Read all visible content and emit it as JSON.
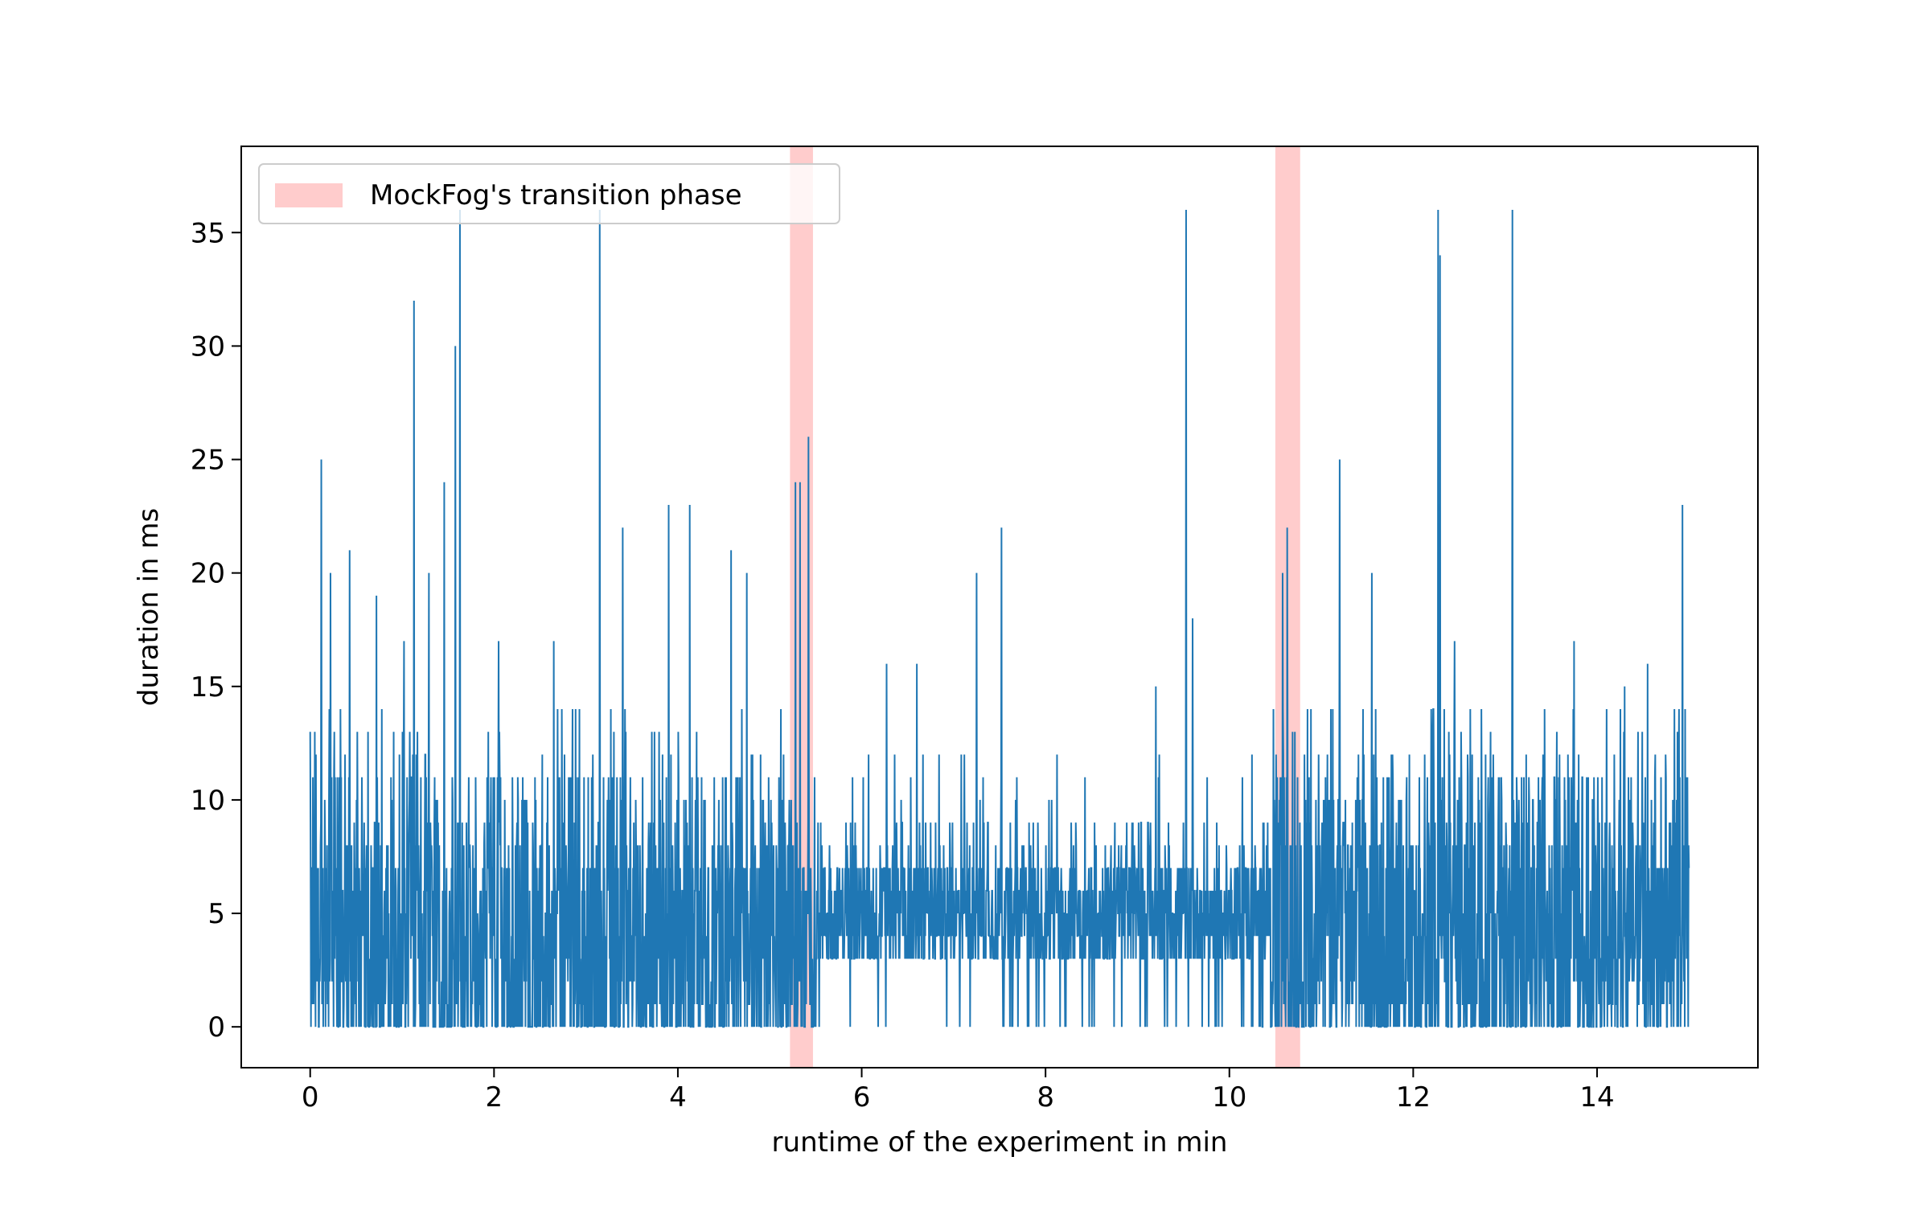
{
  "chart_data": {
    "type": "line",
    "title": "",
    "xlabel": "runtime of the experiment in min",
    "ylabel": "duration in ms",
    "xlim": [
      -0.75,
      15.75
    ],
    "ylim": [
      -1.8,
      38.8
    ],
    "x_ticks": [
      0,
      2,
      4,
      6,
      8,
      10,
      12,
      14
    ],
    "y_ticks": [
      0,
      5,
      10,
      15,
      20,
      25,
      30,
      35
    ],
    "x_tick_labels": [
      "0",
      "2",
      "4",
      "6",
      "8",
      "10",
      "12",
      "14"
    ],
    "y_tick_labels": [
      "0",
      "5",
      "10",
      "15",
      "20",
      "25",
      "30",
      "35"
    ],
    "legend_position": "upper-left",
    "grid": false,
    "colors": {
      "series": "#1f77b4",
      "transition": "#ffcccc",
      "axis": "#000000"
    },
    "series": [
      {
        "x_range": [
          0,
          15
        ],
        "sample_count": 3600,
        "typical_range_ms": [
          0,
          10
        ],
        "peaks": [
          {
            "x": 0.05,
            "y": 13
          },
          {
            "x": 0.12,
            "y": 25
          },
          {
            "x": 0.22,
            "y": 20
          },
          {
            "x": 0.43,
            "y": 21
          },
          {
            "x": 0.72,
            "y": 19
          },
          {
            "x": 1.02,
            "y": 17
          },
          {
            "x": 1.13,
            "y": 32
          },
          {
            "x": 1.29,
            "y": 20
          },
          {
            "x": 1.46,
            "y": 24
          },
          {
            "x": 1.58,
            "y": 30
          },
          {
            "x": 1.63,
            "y": 36
          },
          {
            "x": 2.05,
            "y": 17
          },
          {
            "x": 2.65,
            "y": 17
          },
          {
            "x": 3.15,
            "y": 36
          },
          {
            "x": 3.4,
            "y": 22
          },
          {
            "x": 3.9,
            "y": 23
          },
          {
            "x": 4.13,
            "y": 23
          },
          {
            "x": 4.58,
            "y": 21
          },
          {
            "x": 4.75,
            "y": 20
          },
          {
            "x": 5.28,
            "y": 24
          },
          {
            "x": 5.33,
            "y": 24
          },
          {
            "x": 5.42,
            "y": 26
          },
          {
            "x": 6.27,
            "y": 16
          },
          {
            "x": 6.6,
            "y": 16
          },
          {
            "x": 7.25,
            "y": 20
          },
          {
            "x": 7.52,
            "y": 22
          },
          {
            "x": 9.2,
            "y": 15
          },
          {
            "x": 9.53,
            "y": 36
          },
          {
            "x": 9.6,
            "y": 18
          },
          {
            "x": 10.58,
            "y": 20
          },
          {
            "x": 10.63,
            "y": 22
          },
          {
            "x": 11.2,
            "y": 25
          },
          {
            "x": 11.55,
            "y": 20
          },
          {
            "x": 12.27,
            "y": 36
          },
          {
            "x": 12.29,
            "y": 34
          },
          {
            "x": 12.45,
            "y": 17
          },
          {
            "x": 13.08,
            "y": 36
          },
          {
            "x": 13.75,
            "y": 17
          },
          {
            "x": 14.3,
            "y": 15
          },
          {
            "x": 14.55,
            "y": 16
          },
          {
            "x": 14.93,
            "y": 23
          },
          {
            "x": 14.96,
            "y": 14
          }
        ]
      }
    ],
    "highlight_bands": [
      {
        "label": "MockFog's transition phase",
        "x_start": 5.22,
        "x_end": 5.47
      },
      {
        "x_start": 10.5,
        "x_end": 10.77
      }
    ]
  }
}
